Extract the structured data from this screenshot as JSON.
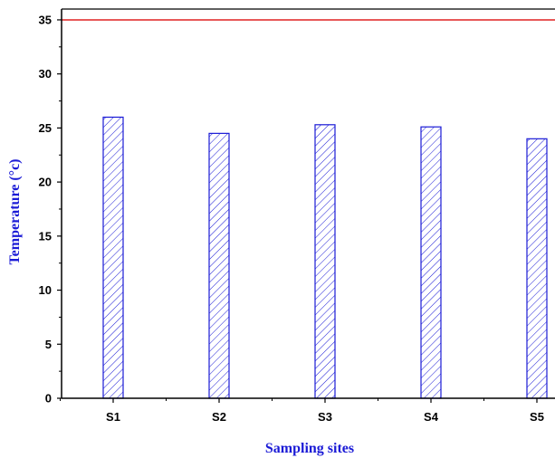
{
  "colors": {
    "axis": "#000000",
    "bar_stroke": "#1a1ad6",
    "hatch": "#1a1ad6",
    "reference_line": "#e02020",
    "axis_title": "#1a1ad6"
  },
  "chart_data": {
    "type": "bar",
    "categories": [
      "S1",
      "S2",
      "S3",
      "S4",
      "S5"
    ],
    "values": [
      26.0,
      24.5,
      25.3,
      25.1,
      24.0
    ],
    "bar_fill": "diagonal-hatch",
    "xlabel": "Sampling sites",
    "ylabel": "Temperature (°c)",
    "ylim": [
      0,
      36
    ],
    "yticks": [
      0,
      5,
      10,
      15,
      20,
      25,
      30,
      35
    ],
    "ytick_labels": [
      "0",
      "5",
      "10",
      "15",
      "20",
      "25",
      "30",
      "35"
    ],
    "reference_line": {
      "y": 35
    },
    "grid": false,
    "legend": "none"
  }
}
